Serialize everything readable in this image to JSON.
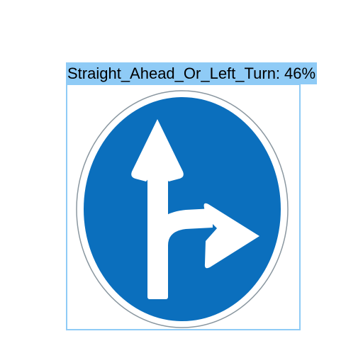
{
  "detection": {
    "class_label": "Straight_Ahead_Or_Left_Turn:",
    "confidence": "46%",
    "box_color": "#8fcbf6"
  },
  "sign": {
    "fill_color": "#0b6fbd",
    "rim_color": "#ffffff",
    "outline_color": "#7f8f99",
    "arrow_color": "#ffffff"
  }
}
